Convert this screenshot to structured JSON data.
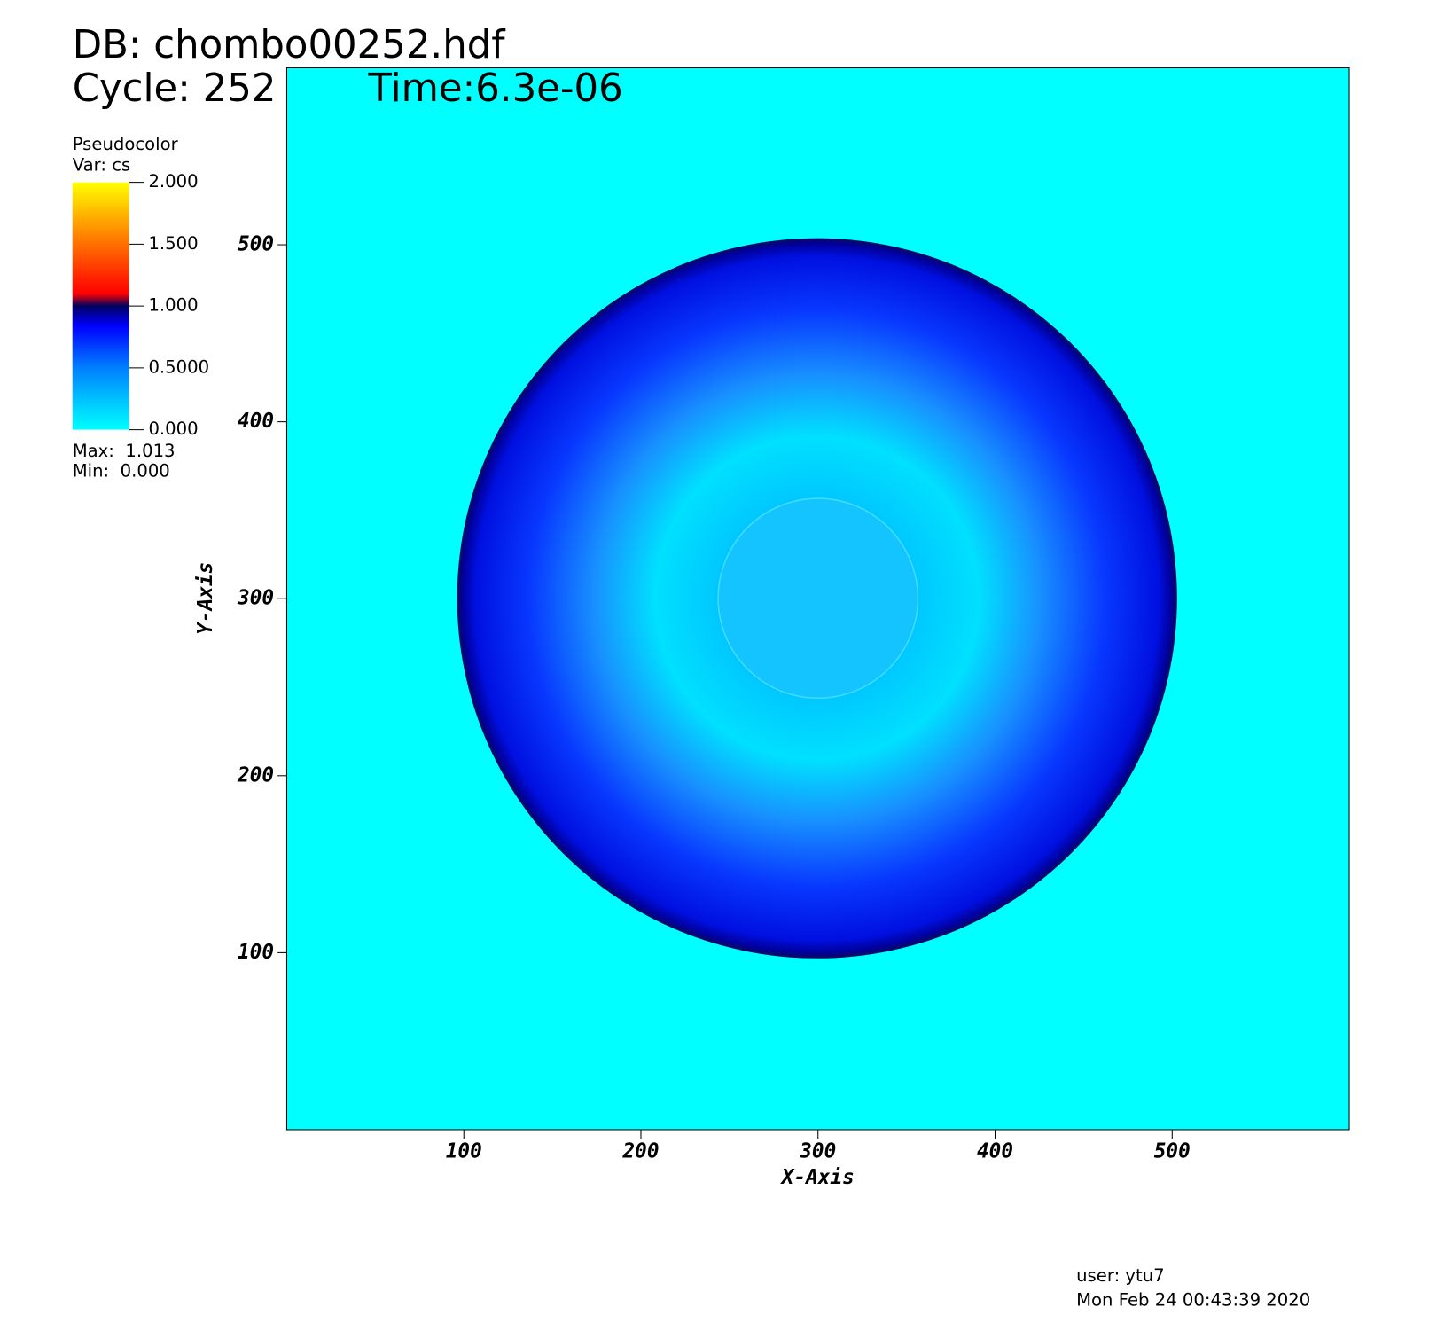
{
  "chart_data": {
    "type": "pseudocolor",
    "title": "DB: chombo00252.hdf",
    "cycle": "Cycle: 252",
    "time": "Time:6.3e-06",
    "legend_title": "Pseudocolor",
    "legend_var": "Var: cs",
    "legend_max": "Max:  1.013",
    "legend_min": "Min:  0.000",
    "x_label": "X-Axis",
    "y_label": "Y-Axis",
    "xlim": [
      0,
      600
    ],
    "ylim": [
      0,
      600
    ],
    "xticks": [
      100,
      200,
      300,
      400,
      500
    ],
    "yticks": [
      100,
      200,
      300,
      400,
      500
    ],
    "clim": [
      0,
      2
    ],
    "cticks": [
      {
        "value": 2,
        "label": "2.000"
      },
      {
        "value": 1.5,
        "label": "1.500"
      },
      {
        "value": 1,
        "label": "1.000"
      },
      {
        "value": 0.5,
        "label": "0.5000"
      },
      {
        "value": 0,
        "label": "0.000"
      }
    ],
    "user": "user: ytu7",
    "date": "Mon Feb 24 00:43:39 2020"
  }
}
